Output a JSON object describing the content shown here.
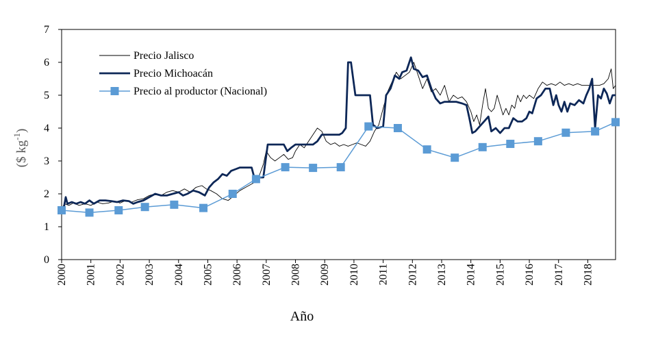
{
  "chart_data": {
    "type": "line",
    "title": "",
    "xlabel": "Año",
    "ylabel_main": "($ kg",
    "ylabel_sup": "-1",
    "ylabel_end": ")",
    "xlim": [
      2000,
      2018.95
    ],
    "ylim": [
      0,
      7
    ],
    "yticks": [
      0,
      1,
      2,
      3,
      4,
      5,
      6,
      7
    ],
    "xticks": [
      "2000",
      "2001",
      "2002",
      "2003",
      "2004",
      "2005",
      "2006",
      "2007",
      "2008",
      "2009",
      "2010",
      "2011",
      "2012",
      "2013",
      "2014",
      "2015",
      "2016",
      "2017",
      "2018"
    ],
    "legend": {
      "placement": "top-left",
      "entries": [
        "Precio Jalisco",
        "Precio Michoacán",
        "Precio al productor (Nacional)"
      ]
    },
    "series": [
      {
        "name": "Precio Jalisco",
        "color": "#000000",
        "marker": "none",
        "points": [
          [
            2000.0,
            1.55
          ],
          [
            2000.1,
            1.7
          ],
          [
            2000.25,
            1.65
          ],
          [
            2000.4,
            1.72
          ],
          [
            2000.6,
            1.65
          ],
          [
            2000.8,
            1.7
          ],
          [
            2001.0,
            1.65
          ],
          [
            2001.2,
            1.75
          ],
          [
            2001.4,
            1.7
          ],
          [
            2001.6,
            1.72
          ],
          [
            2001.8,
            1.78
          ],
          [
            2002.0,
            1.72
          ],
          [
            2002.2,
            1.8
          ],
          [
            2002.4,
            1.75
          ],
          [
            2002.6,
            1.82
          ],
          [
            2002.8,
            1.85
          ],
          [
            2003.0,
            1.95
          ],
          [
            2003.2,
            2.0
          ],
          [
            2003.4,
            1.95
          ],
          [
            2003.6,
            2.05
          ],
          [
            2003.8,
            2.1
          ],
          [
            2004.0,
            2.05
          ],
          [
            2004.2,
            2.15
          ],
          [
            2004.4,
            2.05
          ],
          [
            2004.6,
            2.2
          ],
          [
            2004.8,
            2.25
          ],
          [
            2004.95,
            2.15
          ],
          [
            2005.1,
            2.1
          ],
          [
            2005.3,
            2.0
          ],
          [
            2005.5,
            1.85
          ],
          [
            2005.7,
            1.8
          ],
          [
            2005.9,
            1.95
          ],
          [
            2006.1,
            2.1
          ],
          [
            2006.3,
            2.2
          ],
          [
            2006.5,
            2.3
          ],
          [
            2006.7,
            2.4
          ],
          [
            2006.9,
            2.9
          ],
          [
            2007.0,
            3.3
          ],
          [
            2007.15,
            3.1
          ],
          [
            2007.3,
            3.0
          ],
          [
            2007.45,
            3.1
          ],
          [
            2007.6,
            3.2
          ],
          [
            2007.75,
            3.05
          ],
          [
            2007.9,
            3.1
          ],
          [
            2008.0,
            3.3
          ],
          [
            2008.15,
            3.5
          ],
          [
            2008.3,
            3.4
          ],
          [
            2008.45,
            3.6
          ],
          [
            2008.6,
            3.8
          ],
          [
            2008.75,
            4.0
          ],
          [
            2008.9,
            3.9
          ],
          [
            2009.05,
            3.6
          ],
          [
            2009.2,
            3.5
          ],
          [
            2009.35,
            3.55
          ],
          [
            2009.5,
            3.45
          ],
          [
            2009.65,
            3.5
          ],
          [
            2009.8,
            3.45
          ],
          [
            2009.95,
            3.5
          ],
          [
            2010.1,
            3.55
          ],
          [
            2010.25,
            3.5
          ],
          [
            2010.4,
            3.45
          ],
          [
            2010.55,
            3.6
          ],
          [
            2010.7,
            3.9
          ],
          [
            2010.85,
            4.1
          ],
          [
            2011.0,
            4.6
          ],
          [
            2011.15,
            5.1
          ],
          [
            2011.3,
            5.4
          ],
          [
            2011.45,
            5.7
          ],
          [
            2011.6,
            5.5
          ],
          [
            2011.75,
            5.6
          ],
          [
            2011.9,
            5.7
          ],
          [
            2012.05,
            6.0
          ],
          [
            2012.2,
            5.6
          ],
          [
            2012.35,
            5.2
          ],
          [
            2012.5,
            5.5
          ],
          [
            2012.65,
            5.1
          ],
          [
            2012.8,
            5.2
          ],
          [
            2012.95,
            5.0
          ],
          [
            2013.1,
            5.3
          ],
          [
            2013.25,
            4.8
          ],
          [
            2013.4,
            5.0
          ],
          [
            2013.55,
            4.9
          ],
          [
            2013.7,
            4.95
          ],
          [
            2013.85,
            4.8
          ],
          [
            2014.0,
            4.5
          ],
          [
            2014.1,
            4.2
          ],
          [
            2014.2,
            4.4
          ],
          [
            2014.3,
            4.1
          ],
          [
            2014.4,
            4.7
          ],
          [
            2014.5,
            5.2
          ],
          [
            2014.6,
            4.6
          ],
          [
            2014.7,
            4.5
          ],
          [
            2014.8,
            4.6
          ],
          [
            2014.9,
            5.0
          ],
          [
            2015.0,
            4.7
          ],
          [
            2015.1,
            4.4
          ],
          [
            2015.2,
            4.6
          ],
          [
            2015.3,
            4.4
          ],
          [
            2015.4,
            4.7
          ],
          [
            2015.5,
            4.6
          ],
          [
            2015.6,
            5.0
          ],
          [
            2015.7,
            4.8
          ],
          [
            2015.8,
            5.0
          ],
          [
            2015.9,
            4.9
          ],
          [
            2016.0,
            5.0
          ],
          [
            2016.15,
            4.9
          ],
          [
            2016.3,
            5.2
          ],
          [
            2016.45,
            5.4
          ],
          [
            2016.6,
            5.3
          ],
          [
            2016.75,
            5.35
          ],
          [
            2016.9,
            5.3
          ],
          [
            2017.05,
            5.4
          ],
          [
            2017.2,
            5.3
          ],
          [
            2017.35,
            5.35
          ],
          [
            2017.5,
            5.3
          ],
          [
            2017.65,
            5.35
          ],
          [
            2017.8,
            5.3
          ],
          [
            2017.95,
            5.3
          ],
          [
            2018.1,
            5.3
          ],
          [
            2018.25,
            5.3
          ],
          [
            2018.4,
            5.3
          ],
          [
            2018.55,
            5.35
          ],
          [
            2018.7,
            5.5
          ],
          [
            2018.8,
            5.8
          ],
          [
            2018.87,
            5.2
          ],
          [
            2018.95,
            5.3
          ]
        ]
      },
      {
        "name": "Precio Michoacán",
        "color": "#0d2757",
        "marker": "none",
        "points": [
          [
            2000.0,
            1.55
          ],
          [
            2000.08,
            1.6
          ],
          [
            2000.14,
            1.9
          ],
          [
            2000.2,
            1.7
          ],
          [
            2000.35,
            1.75
          ],
          [
            2000.5,
            1.7
          ],
          [
            2000.65,
            1.75
          ],
          [
            2000.8,
            1.7
          ],
          [
            2000.95,
            1.8
          ],
          [
            2001.1,
            1.7
          ],
          [
            2001.3,
            1.8
          ],
          [
            2001.5,
            1.8
          ],
          [
            2001.7,
            1.78
          ],
          [
            2001.9,
            1.75
          ],
          [
            2002.1,
            1.8
          ],
          [
            2002.3,
            1.78
          ],
          [
            2002.45,
            1.7
          ],
          [
            2002.6,
            1.75
          ],
          [
            2002.8,
            1.8
          ],
          [
            2003.0,
            1.9
          ],
          [
            2003.2,
            2.0
          ],
          [
            2003.4,
            1.95
          ],
          [
            2003.6,
            1.95
          ],
          [
            2003.8,
            2.0
          ],
          [
            2004.0,
            2.05
          ],
          [
            2004.15,
            1.95
          ],
          [
            2004.3,
            2.0
          ],
          [
            2004.5,
            2.1
          ],
          [
            2004.7,
            2.05
          ],
          [
            2004.9,
            1.95
          ],
          [
            2005.05,
            2.2
          ],
          [
            2005.2,
            2.35
          ],
          [
            2005.35,
            2.45
          ],
          [
            2005.5,
            2.6
          ],
          [
            2005.65,
            2.55
          ],
          [
            2005.8,
            2.7
          ],
          [
            2005.95,
            2.75
          ],
          [
            2006.1,
            2.8
          ],
          [
            2006.3,
            2.8
          ],
          [
            2006.5,
            2.8
          ],
          [
            2006.62,
            2.4
          ],
          [
            2006.75,
            2.5
          ],
          [
            2006.9,
            2.5
          ],
          [
            2007.05,
            3.5
          ],
          [
            2007.2,
            3.5
          ],
          [
            2007.4,
            3.5
          ],
          [
            2007.6,
            3.5
          ],
          [
            2007.72,
            3.3
          ],
          [
            2007.85,
            3.4
          ],
          [
            2008.0,
            3.5
          ],
          [
            2008.2,
            3.5
          ],
          [
            2008.4,
            3.5
          ],
          [
            2008.6,
            3.5
          ],
          [
            2008.75,
            3.6
          ],
          [
            2008.9,
            3.8
          ],
          [
            2009.1,
            3.8
          ],
          [
            2009.3,
            3.8
          ],
          [
            2009.5,
            3.8
          ],
          [
            2009.6,
            3.85
          ],
          [
            2009.72,
            4.0
          ],
          [
            2009.8,
            6.0
          ],
          [
            2009.9,
            6.0
          ],
          [
            2010.05,
            5.0
          ],
          [
            2010.3,
            5.0
          ],
          [
            2010.55,
            5.0
          ],
          [
            2010.65,
            4.1
          ],
          [
            2010.8,
            4.0
          ],
          [
            2011.0,
            4.05
          ],
          [
            2011.1,
            5.0
          ],
          [
            2011.25,
            5.2
          ],
          [
            2011.4,
            5.6
          ],
          [
            2011.55,
            5.5
          ],
          [
            2011.65,
            5.7
          ],
          [
            2011.8,
            5.75
          ],
          [
            2011.95,
            6.15
          ],
          [
            2012.05,
            5.8
          ],
          [
            2012.2,
            5.75
          ],
          [
            2012.35,
            5.55
          ],
          [
            2012.5,
            5.6
          ],
          [
            2012.65,
            5.2
          ],
          [
            2012.8,
            4.9
          ],
          [
            2012.95,
            4.75
          ],
          [
            2013.1,
            4.8
          ],
          [
            2013.3,
            4.8
          ],
          [
            2013.5,
            4.8
          ],
          [
            2013.7,
            4.75
          ],
          [
            2013.85,
            4.7
          ],
          [
            2013.95,
            4.3
          ],
          [
            2014.05,
            3.85
          ],
          [
            2014.15,
            3.9
          ],
          [
            2014.3,
            4.05
          ],
          [
            2014.45,
            4.2
          ],
          [
            2014.6,
            4.35
          ],
          [
            2014.7,
            3.9
          ],
          [
            2014.85,
            4.0
          ],
          [
            2015.0,
            3.85
          ],
          [
            2015.15,
            4.0
          ],
          [
            2015.3,
            4.0
          ],
          [
            2015.45,
            4.3
          ],
          [
            2015.6,
            4.2
          ],
          [
            2015.75,
            4.2
          ],
          [
            2015.9,
            4.3
          ],
          [
            2016.0,
            4.5
          ],
          [
            2016.1,
            4.45
          ],
          [
            2016.25,
            4.9
          ],
          [
            2016.4,
            5.0
          ],
          [
            2016.55,
            5.2
          ],
          [
            2016.7,
            5.2
          ],
          [
            2016.82,
            4.7
          ],
          [
            2016.92,
            5.0
          ],
          [
            2017.0,
            4.7
          ],
          [
            2017.1,
            4.5
          ],
          [
            2017.2,
            4.8
          ],
          [
            2017.3,
            4.5
          ],
          [
            2017.4,
            4.75
          ],
          [
            2017.55,
            4.7
          ],
          [
            2017.7,
            4.85
          ],
          [
            2017.85,
            4.75
          ],
          [
            2017.95,
            5.0
          ],
          [
            2018.05,
            5.2
          ],
          [
            2018.15,
            5.5
          ],
          [
            2018.25,
            4.0
          ],
          [
            2018.35,
            5.0
          ],
          [
            2018.45,
            4.9
          ],
          [
            2018.55,
            5.2
          ],
          [
            2018.65,
            5.05
          ],
          [
            2018.75,
            4.75
          ],
          [
            2018.85,
            5.0
          ],
          [
            2018.95,
            5.0
          ]
        ]
      },
      {
        "name": "Precio al productor (Nacional)",
        "color": "#5b9bd5",
        "marker": "square",
        "points": [
          [
            2000.0,
            1.5
          ],
          [
            2000.95,
            1.43
          ],
          [
            2001.95,
            1.5
          ],
          [
            2002.85,
            1.6
          ],
          [
            2003.85,
            1.67
          ],
          [
            2004.85,
            1.57
          ],
          [
            2005.85,
            2.0
          ],
          [
            2006.65,
            2.45
          ],
          [
            2007.65,
            2.81
          ],
          [
            2008.6,
            2.79
          ],
          [
            2009.55,
            2.81
          ],
          [
            2010.5,
            4.05
          ],
          [
            2011.5,
            4.0
          ],
          [
            2012.5,
            3.35
          ],
          [
            2013.45,
            3.1
          ],
          [
            2014.4,
            3.42
          ],
          [
            2015.35,
            3.52
          ],
          [
            2016.3,
            3.6
          ],
          [
            2017.25,
            3.86
          ],
          [
            2018.25,
            3.9
          ],
          [
            2019.2,
            4.18
          ]
        ]
      }
    ]
  }
}
